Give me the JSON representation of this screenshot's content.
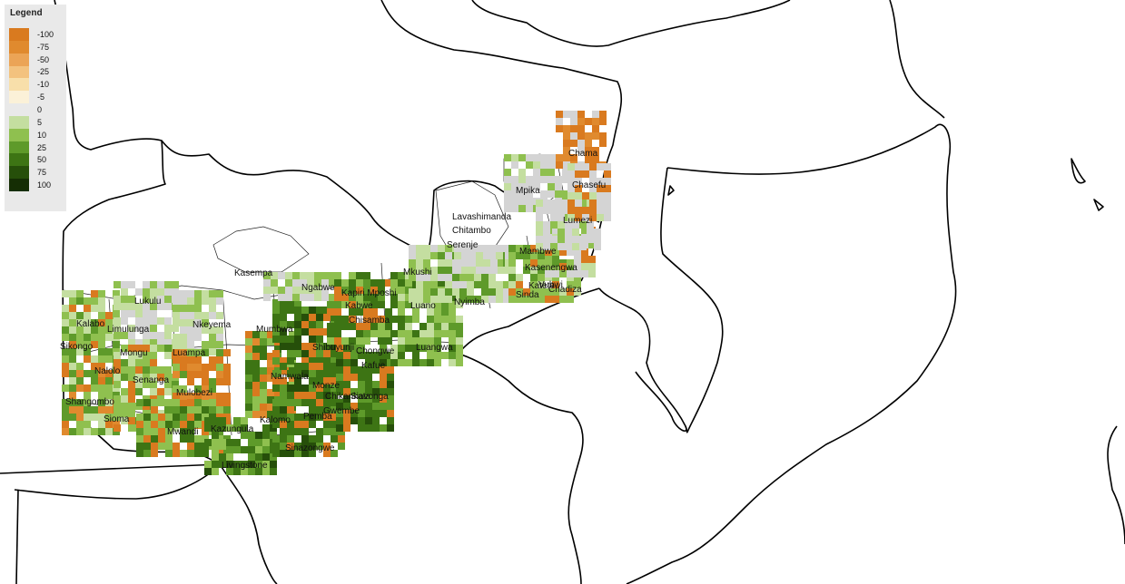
{
  "legend": {
    "title": "Legend",
    "entries": [
      {
        "label": "-100",
        "color": "#d97a1f"
      },
      {
        "label": "-75",
        "color": "#e08a2e"
      },
      {
        "label": "-50",
        "color": "#eba456"
      },
      {
        "label": "-25",
        "color": "#f3c27e"
      },
      {
        "label": "-10",
        "color": "#f8dfaa"
      },
      {
        "label": "-5",
        "color": "#fbf1d8"
      },
      {
        "label": "0",
        "color": "#e9e9e9"
      },
      {
        "label": "5",
        "color": "#c4dea0"
      },
      {
        "label": "10",
        "color": "#8fc04f"
      },
      {
        "label": "25",
        "color": "#5e9a2a"
      },
      {
        "label": "50",
        "color": "#3d7414"
      },
      {
        "label": "75",
        "color": "#264f0a"
      },
      {
        "label": "100",
        "color": "#152e04"
      }
    ]
  },
  "places": [
    "Chama",
    "Chasefu",
    "Mpika",
    "Lumezi",
    "Lavashimanda",
    "Chitambo",
    "Serenje",
    "Mambwe",
    "Kasenengwa",
    "Katete",
    "Vubwi",
    "Chadiza",
    "Sinda",
    "Mkushi",
    "Kasempa",
    "Ngabwe",
    "Kapiri Mposhi",
    "Kabwe",
    "Luano",
    "Nyimba",
    "Chisamba",
    "Lukulu",
    "Kalabo",
    "Nkeyema",
    "Mumbwa",
    "Limulunga",
    "Sikongo",
    "Mongu",
    "Luampa",
    "Shibuyunji",
    "Chongwe",
    "Kafue",
    "Luangwa",
    "Nalolo",
    "Senanga",
    "Namwala",
    "Monze",
    "Mulobezi",
    "Chikankata",
    "Siavonga",
    "Shangombo",
    "Gwembe",
    "Sioma",
    "Kalomo",
    "Pemba",
    "Mwandi",
    "Kazungula",
    "Sinazongwe",
    "Livingstone"
  ]
}
